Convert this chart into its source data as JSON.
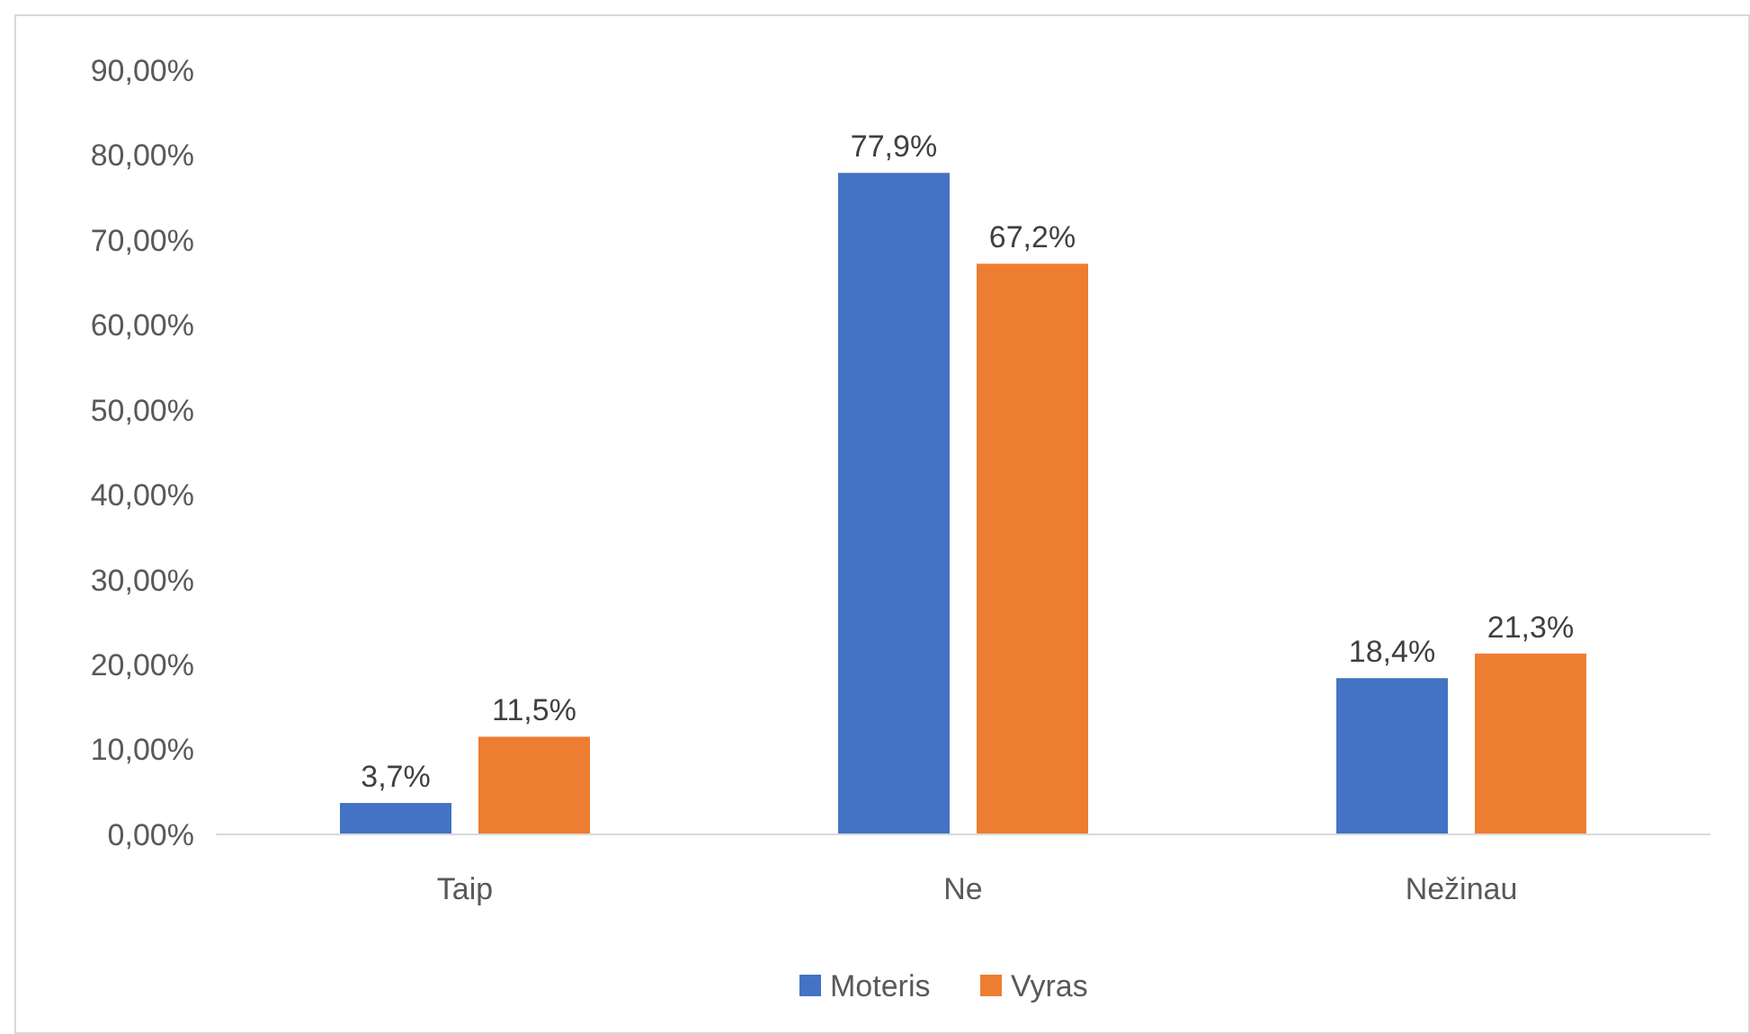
{
  "chart_data": {
    "type": "bar",
    "categories": [
      "Taip",
      "Ne",
      "Nežinau"
    ],
    "series": [
      {
        "name": "Moteris",
        "color": "#4472c4",
        "values": [
          3.7,
          77.9,
          18.4
        ],
        "value_labels": [
          "3,7%",
          "77,9%",
          "18,4%"
        ]
      },
      {
        "name": "Vyras",
        "color": "#ed7d31",
        "values": [
          11.5,
          67.2,
          21.3
        ],
        "value_labels": [
          "11,5%",
          "67,2%",
          "21,3%"
        ]
      }
    ],
    "ylim": [
      0,
      90
    ],
    "yticks": [
      {
        "value": 0,
        "label": "0,00%"
      },
      {
        "value": 10,
        "label": "10,00%"
      },
      {
        "value": 20,
        "label": "20,00%"
      },
      {
        "value": 30,
        "label": "30,00%"
      },
      {
        "value": 40,
        "label": "40,00%"
      },
      {
        "value": 50,
        "label": "50,00%"
      },
      {
        "value": 60,
        "label": "60,00%"
      },
      {
        "value": 70,
        "label": "70,00%"
      },
      {
        "value": 80,
        "label": "80,00%"
      },
      {
        "value": 90,
        "label": "90,00%"
      }
    ],
    "grid": false,
    "legend": "bottom"
  }
}
